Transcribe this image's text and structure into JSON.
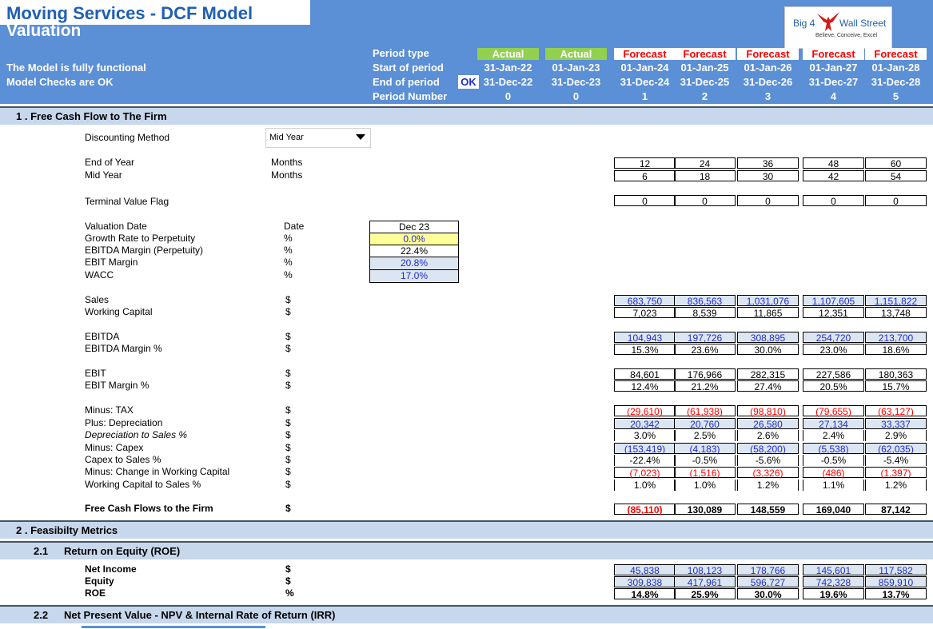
{
  "header": {
    "title": "Moving Services - DCF Model",
    "subtitle": "Valuation",
    "status1": "The Model is fully functional",
    "status2": "Model Checks are OK",
    "ok": "OK",
    "row_labels": [
      "Period type",
      "Start of period",
      "End of period",
      "Period Number"
    ],
    "periods": [
      {
        "type": "Actual",
        "start": "31-Jan-22",
        "end": "31-Dec-22",
        "num": "0"
      },
      {
        "type": "Actual",
        "start": "01-Jan-23",
        "end": "31-Dec-23",
        "num": "0"
      },
      {
        "type": "Forecast",
        "start": "01-Jan-24",
        "end": "31-Dec-24",
        "num": "1"
      },
      {
        "type": "Forecast",
        "start": "01-Jan-25",
        "end": "31-Dec-25",
        "num": "2"
      },
      {
        "type": "Forecast",
        "start": "01-Jan-26",
        "end": "31-Dec-26",
        "num": "3"
      },
      {
        "type": "Forecast",
        "start": "01-Jan-27",
        "end": "31-Dec-27",
        "num": "4"
      },
      {
        "type": "Forecast",
        "start": "01-Jan-28",
        "end": "31-Dec-28",
        "num": "5"
      }
    ],
    "colors": {
      "actual_bg": "#92d050",
      "forecast_fg": "#ff0000",
      "header_bg": "#5b8fd6"
    }
  },
  "logo": {
    "text_left": "Big 4",
    "text_right": "Wall Street",
    "tagline": "Believe, Conceive, Excel",
    "icon": "eagle-icon"
  },
  "section1": {
    "title": "1 .  Free Cash Flow to The Firm",
    "discounting_label": "Discounting Method",
    "discounting_value": "Mid Year",
    "timing": [
      {
        "label": "End of Year",
        "unit": "Months",
        "values": [
          "12",
          "24",
          "36",
          "48",
          "60"
        ]
      },
      {
        "label": "Mid Year",
        "unit": "Months",
        "values": [
          "6",
          "18",
          "30",
          "42",
          "54"
        ]
      }
    ],
    "terminal": {
      "label": "Terminal Value Flag",
      "values": [
        "0",
        "0",
        "0",
        "0",
        "0"
      ]
    },
    "assumptions": [
      {
        "label": "Valuation Date",
        "unit": "Date",
        "value": "Dec 23",
        "style": "plain"
      },
      {
        "label": "Growth Rate to Perpetuity",
        "unit": "%",
        "value": "0.0%",
        "style": "yellow"
      },
      {
        "label": "EBITDA Margin (Perpetuity)",
        "unit": "%",
        "value": "22.4%",
        "style": "plain"
      },
      {
        "label": "EBIT Margin",
        "unit": "%",
        "value": "20.8%",
        "style": "blue"
      },
      {
        "label": "WACC",
        "unit": "%",
        "value": "17.0%",
        "style": "blue"
      }
    ],
    "rows": [
      {
        "label": "Sales",
        "unit": "$",
        "values": [
          "683,750",
          "836,563",
          "1,031,076",
          "1,107,605",
          "1,151,822"
        ],
        "style": "blue"
      },
      {
        "label": "Working Capital",
        "unit": "$",
        "values": [
          "7,023",
          "8,539",
          "11,865",
          "12,351",
          "13,748"
        ],
        "style": "plain"
      },
      {
        "label": "EBITDA",
        "unit": "$",
        "values": [
          "104,943",
          "197,726",
          "308,895",
          "254,720",
          "213,700"
        ],
        "style": "blue"
      },
      {
        "label": "EBITDA Margin %",
        "unit": "$",
        "values": [
          "15.3%",
          "23.6%",
          "30.0%",
          "23.0%",
          "18.6%"
        ],
        "style": "plain"
      },
      {
        "label": "EBIT",
        "unit": "$",
        "values": [
          "84,601",
          "176,966",
          "282,315",
          "227,586",
          "180,363"
        ],
        "style": "plain"
      },
      {
        "label": "EBIT Margin %",
        "unit": "$",
        "values": [
          "12.4%",
          "21.2%",
          "27.4%",
          "20.5%",
          "15.7%"
        ],
        "style": "plain"
      },
      {
        "label": "Minus: TAX",
        "unit": "$",
        "values": [
          "(29,610)",
          "(61,938)",
          "(98,810)",
          "(79,655)",
          "(63,127)"
        ],
        "style": "red"
      },
      {
        "label": "Plus: Depreciation",
        "unit": "$",
        "values": [
          "20,342",
          "20,760",
          "26,580",
          "27,134",
          "33,337"
        ],
        "style": "blue"
      },
      {
        "label": "Depreciation to Sales %",
        "unit": "$",
        "values": [
          "3.0%",
          "2.5%",
          "2.6%",
          "2.4%",
          "2.9%"
        ],
        "style": "plain-noborder",
        "italic": true
      },
      {
        "label": "Minus: Capex",
        "unit": "$",
        "values": [
          "(153,419)",
          "(4,183)",
          "(58,200)",
          "(5,538)",
          "(62,035)"
        ],
        "style": "blue"
      },
      {
        "label": "Capex to Sales %",
        "unit": "$",
        "values": [
          "-22.4%",
          "-0.5%",
          "-5.6%",
          "-0.5%",
          "-5.4%"
        ],
        "style": "plain-noborder"
      },
      {
        "label": "Minus: Change in Working Capital",
        "unit": "$",
        "values": [
          "(7,023)",
          "(1,516)",
          "(3,326)",
          "(486)",
          "(1,397)"
        ],
        "style": "red"
      },
      {
        "label": "Working Capital to Sales %",
        "unit": "$",
        "values": [
          "1.0%",
          "1.0%",
          "1.2%",
          "1.1%",
          "1.2%"
        ],
        "style": "plain-noborder"
      },
      {
        "label": "Free Cash Flows to the Firm",
        "unit": "$",
        "values": [
          "(85,110)",
          "130,089",
          "148,559",
          "169,040",
          "87,142"
        ],
        "style": "bold"
      }
    ]
  },
  "section2": {
    "title": "2 .  Feasibilty Metrics",
    "sub1": {
      "num": "2.1",
      "title": "Return on Equity (ROE)"
    },
    "roe_rows": [
      {
        "label": "Net Income",
        "unit": "$",
        "values": [
          "45,838",
          "108,123",
          "178,766",
          "145,601",
          "117,582"
        ],
        "style": "blue"
      },
      {
        "label": "Equity",
        "unit": "$",
        "values": [
          "309,838",
          "417,961",
          "596,727",
          "742,328",
          "859,910"
        ],
        "style": "blue"
      },
      {
        "label": "ROE",
        "unit": "%",
        "values": [
          "14.8%",
          "25.9%",
          "30.0%",
          "19.6%",
          "13.7%"
        ],
        "style": "bold"
      }
    ],
    "sub2": {
      "num": "2.2",
      "title": "Net Present Value - NPV & Internal Rate of Return (IRR)"
    }
  }
}
